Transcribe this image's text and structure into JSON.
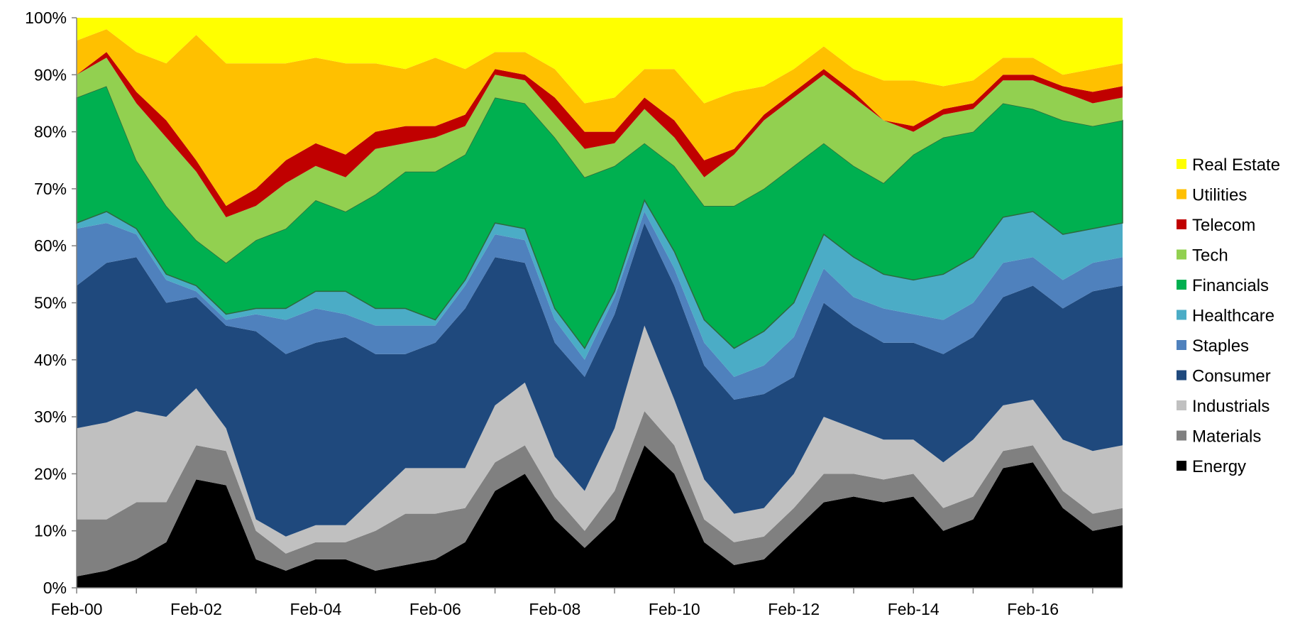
{
  "chart_data": {
    "type": "area",
    "stacked": "percent",
    "title": "",
    "xlabel": "",
    "ylabel": "",
    "ylim": [
      0,
      100
    ],
    "y_ticks": [
      0,
      10,
      20,
      30,
      40,
      50,
      60,
      70,
      80,
      90,
      100
    ],
    "y_tick_format": "percent",
    "x_ticks": [
      "Feb-00",
      "Feb-02",
      "Feb-04",
      "Feb-06",
      "Feb-08",
      "Feb-10",
      "Feb-12",
      "Feb-14",
      "Feb-16"
    ],
    "x": [
      "Feb-00",
      "Aug-00",
      "Feb-01",
      "Aug-01",
      "Feb-02",
      "Aug-02",
      "Feb-03",
      "Aug-03",
      "Feb-04",
      "Aug-04",
      "Feb-05",
      "Aug-05",
      "Feb-06",
      "Aug-06",
      "Feb-07",
      "Aug-07",
      "Feb-08",
      "Aug-08",
      "Feb-09",
      "Aug-09",
      "Feb-10",
      "Aug-10",
      "Feb-11",
      "Aug-11",
      "Feb-12",
      "Aug-12",
      "Feb-13",
      "Aug-13",
      "Feb-14",
      "Aug-14",
      "Feb-15",
      "Aug-15",
      "Feb-16",
      "Aug-16",
      "Feb-17",
      "Aug-17"
    ],
    "legend_position": "right",
    "series": [
      {
        "name": "Energy",
        "color": "#000000",
        "values": [
          2,
          3,
          5,
          8,
          19,
          18,
          5,
          3,
          5,
          5,
          3,
          4,
          5,
          8,
          17,
          20,
          12,
          7,
          12,
          25,
          20,
          8,
          4,
          5,
          10,
          15,
          16,
          15,
          16,
          10,
          12,
          21,
          22,
          14,
          10,
          11
        ]
      },
      {
        "name": "Materials",
        "color": "#808080",
        "values": [
          10,
          9,
          10,
          7,
          6,
          6,
          5,
          3,
          3,
          3,
          7,
          9,
          8,
          6,
          5,
          5,
          4,
          3,
          5,
          6,
          5,
          4,
          4,
          4,
          4,
          5,
          4,
          4,
          4,
          4,
          4,
          3,
          3,
          3,
          3,
          3
        ]
      },
      {
        "name": "Industrials",
        "color": "#c0c0c0",
        "values": [
          16,
          17,
          16,
          15,
          10,
          4,
          2,
          3,
          3,
          3,
          6,
          8,
          8,
          7,
          10,
          11,
          7,
          7,
          11,
          15,
          8,
          7,
          5,
          5,
          6,
          10,
          8,
          7,
          6,
          8,
          10,
          8,
          8,
          9,
          11,
          11
        ]
      },
      {
        "name": "Consumer",
        "color": "#1f497d",
        "values": [
          25,
          28,
          27,
          20,
          16,
          18,
          33,
          32,
          32,
          33,
          25,
          20,
          22,
          28,
          26,
          21,
          20,
          20,
          20,
          18,
          20,
          20,
          20,
          20,
          17,
          20,
          18,
          17,
          17,
          19,
          18,
          19,
          20,
          23,
          28,
          28
        ]
      },
      {
        "name": "Staples",
        "color": "#4f81bd",
        "values": [
          10,
          7,
          4,
          4,
          1,
          1,
          3,
          6,
          6,
          4,
          5,
          5,
          3,
          4,
          4,
          4,
          4,
          3,
          3,
          2,
          3,
          4,
          4,
          5,
          7,
          6,
          5,
          6,
          5,
          6,
          6,
          6,
          5,
          5,
          5,
          5
        ]
      },
      {
        "name": "Healthcare",
        "color": "#4bacc6",
        "values": [
          1,
          2,
          1,
          1,
          1,
          1,
          1,
          2,
          3,
          4,
          3,
          3,
          1,
          1,
          2,
          2,
          2,
          2,
          1,
          2,
          3,
          4,
          5,
          6,
          6,
          6,
          7,
          6,
          6,
          8,
          8,
          8,
          8,
          8,
          6,
          6
        ]
      },
      {
        "name": "Financials",
        "color": "#00b050",
        "values": [
          22,
          22,
          12,
          12,
          8,
          9,
          12,
          14,
          16,
          14,
          20,
          24,
          26,
          22,
          22,
          22,
          30,
          30,
          22,
          10,
          15,
          20,
          25,
          25,
          24,
          16,
          16,
          16,
          22,
          24,
          22,
          20,
          18,
          20,
          18,
          18
        ]
      },
      {
        "name": "Tech",
        "color": "#92d050",
        "values": [
          4,
          5,
          10,
          12,
          12,
          8,
          6,
          8,
          6,
          6,
          8,
          5,
          6,
          5,
          4,
          4,
          4,
          5,
          4,
          6,
          5,
          5,
          9,
          12,
          12,
          12,
          12,
          11,
          4,
          4,
          4,
          4,
          5,
          5,
          4,
          4
        ]
      },
      {
        "name": "Telecom",
        "color": "#c00000",
        "values": [
          0,
          1,
          2,
          3,
          2,
          2,
          3,
          4,
          4,
          4,
          3,
          3,
          2,
          2,
          1,
          1,
          3,
          3,
          2,
          2,
          3,
          3,
          1,
          1,
          1,
          1,
          1,
          0,
          1,
          1,
          1,
          1,
          1,
          1,
          2,
          2
        ]
      },
      {
        "name": "Utilities",
        "color": "#ffc000",
        "values": [
          6,
          4,
          7,
          10,
          22,
          25,
          22,
          17,
          15,
          16,
          12,
          10,
          12,
          8,
          3,
          4,
          5,
          5,
          6,
          5,
          9,
          10,
          10,
          5,
          4,
          4,
          4,
          7,
          8,
          4,
          4,
          3,
          3,
          2,
          4,
          4
        ]
      },
      {
        "name": "Real Estate",
        "color": "#ffff00",
        "values": [
          4,
          2,
          6,
          8,
          3,
          8,
          8,
          8,
          7,
          8,
          8,
          9,
          7,
          9,
          6,
          6,
          9,
          15,
          14,
          9,
          9,
          15,
          13,
          12,
          9,
          5,
          9,
          11,
          11,
          12,
          11,
          7,
          7,
          10,
          9,
          8
        ]
      }
    ]
  }
}
